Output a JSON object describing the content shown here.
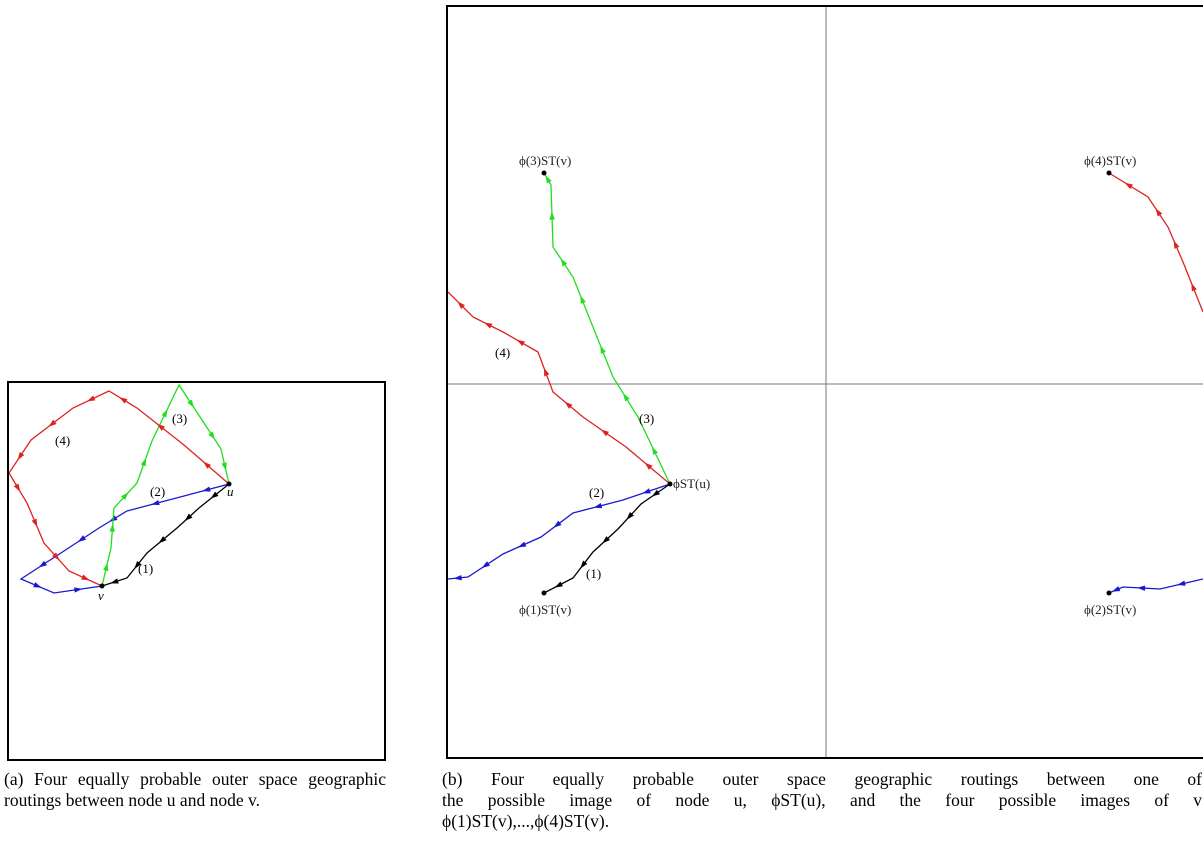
{
  "figure_a": {
    "routes": [
      {
        "label": "(1)",
        "color": "#000000"
      },
      {
        "label": "(2)",
        "color": "#1a1acc"
      },
      {
        "label": "(3)",
        "color": "#22dd22"
      },
      {
        "label": "(4)",
        "color": "#dd2222"
      }
    ],
    "node_u": "u",
    "node_v": "v"
  },
  "figure_b": {
    "routes": [
      {
        "label": "(1)",
        "color": "#000000"
      },
      {
        "label": "(2)",
        "color": "#1a1acc"
      },
      {
        "label": "(3)",
        "color": "#22dd22"
      },
      {
        "label": "(4)",
        "color": "#dd2222"
      }
    ],
    "phi_u_label": "ϕST(u)",
    "phi_v_labels": [
      "ϕ(1)ST(v)",
      "ϕ(2)ST(v)",
      "ϕ(3)ST(v)",
      "ϕ(4)ST(v)"
    ]
  },
  "captions": {
    "a": "(a) Four equally probable outer space geographic routings between node u and node v.",
    "b_line1": "(b) Four equally probable outer space geographic routings between one of",
    "b_line2": "the possible image of node u, ϕST(u), and the four possible images of v",
    "b_line3": "ϕ(1)ST(v),...,ϕ(4)ST(v)."
  }
}
